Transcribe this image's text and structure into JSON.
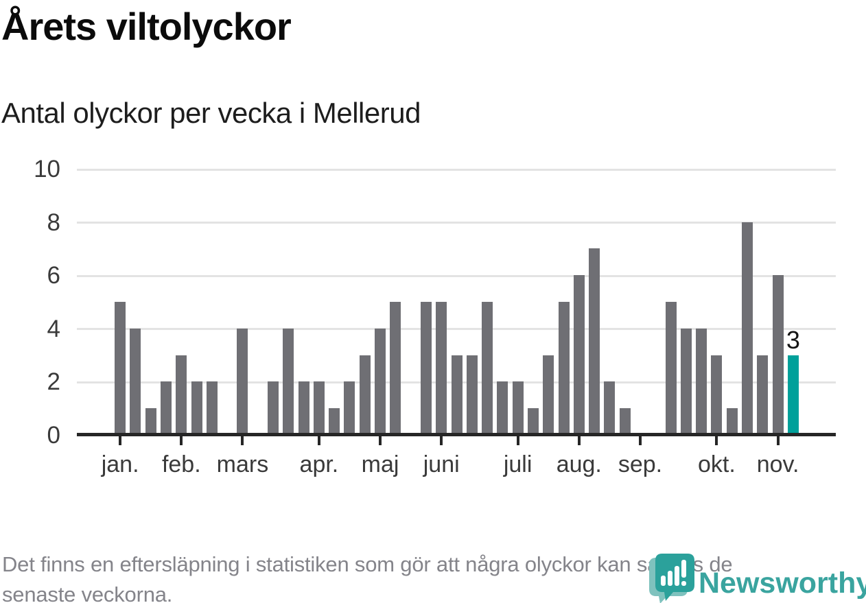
{
  "title": "Årets viltolyckor",
  "subtitle": "Antal olyckor per vecka i Mellerud",
  "footer": {
    "line1": "Det finns en eftersläpning i statistiken som gör att några olyckor kan saknas de",
    "line2": "senaste veckorna."
  },
  "logo": {
    "wordmark": "Newsworthy",
    "icon": "newsworthy-bubble-chart-icon"
  },
  "colors": {
    "bar": "#6f6f74",
    "highlight_bar": "#00a09a",
    "gridline": "#e3e3e3",
    "axis": "#262626",
    "tick_label": "#3a3a3a",
    "footer_text": "#84848a",
    "logo_teal": "#3aa49f",
    "logo_icon_teal": "#2ba19b",
    "logo_icon_shadow": "#7fc2be"
  },
  "chart_data": {
    "type": "bar",
    "title": "Årets viltolyckor",
    "subtitle": "Antal olyckor per vecka i Mellerud",
    "x_unit": "vecka (week)",
    "ylabel": "",
    "ylim": [
      0,
      10
    ],
    "y_ticks": [
      0,
      2,
      4,
      6,
      8,
      10
    ],
    "grid": "horizontal",
    "num_week_slots": 45,
    "values": [
      5,
      4,
      1,
      2,
      3,
      2,
      2,
      0,
      4,
      0,
      2,
      4,
      2,
      2,
      1,
      2,
      3,
      4,
      5,
      0,
      5,
      5,
      3,
      3,
      5,
      2,
      2,
      1,
      3,
      5,
      6,
      7,
      2,
      1,
      0,
      0,
      5,
      4,
      4,
      3,
      1,
      8,
      3,
      6,
      3
    ],
    "highlight_index": 44,
    "highlight_value_label": "3",
    "month_ticks": [
      {
        "label": "jan.",
        "slot": 0
      },
      {
        "label": "feb.",
        "slot": 4
      },
      {
        "label": "mars",
        "slot": 8
      },
      {
        "label": "apr.",
        "slot": 13
      },
      {
        "label": "maj",
        "slot": 17
      },
      {
        "label": "juni",
        "slot": 21
      },
      {
        "label": "juli",
        "slot": 26
      },
      {
        "label": "aug.",
        "slot": 30
      },
      {
        "label": "sep.",
        "slot": 34
      },
      {
        "label": "okt.",
        "slot": 39
      },
      {
        "label": "nov.",
        "slot": 43
      }
    ]
  }
}
